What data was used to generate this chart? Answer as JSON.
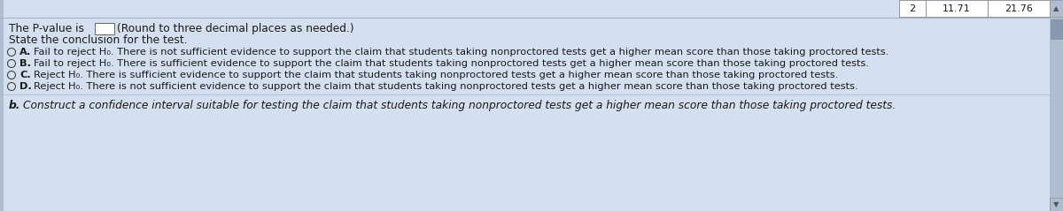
{
  "bg_color": "#d4dff0",
  "text_color": "#1a1a1a",
  "white": "#ffffff",
  "border_color": "#888888",
  "table_bg": "#c8d3e3",
  "scrollbar_bg": "#b0bccf",
  "scrollbar_thumb": "#8898b0",
  "line_color": "#a8b4c4",
  "font_size_main": 8.8,
  "font_size_opt": 8.2,
  "font_size_last": 8.8,
  "p_value_label": "The P-value is",
  "p_value_suffix": " (Round to three decimal places as needed.)",
  "conclusion_label": "State the conclusion for the test.",
  "optA": "Fail to reject H₀. There is not sufficient evidence to support the claim that students taking nonproctored tests get a higher mean score than those taking proctored tests.",
  "optB": "Fail to reject H₀. There is sufficient evidence to support the claim that students taking nonproctored tests get a higher mean score than those taking proctored tests.",
  "optC": "Reject H₀. There is sufficient evidence to support the claim that students taking nonproctored tests get a higher mean score than those taking proctored tests.",
  "optD": "Reject H₀. There is not sufficient evidence to support the claim that students taking nonproctored tests get a higher mean score than those taking proctored tests.",
  "last_line": "Construct a confidence interval suitable for testing the claim that students taking nonproctored tests get a higher mean score than those taking proctored tests.",
  "col1": "2",
  "col2": "11.71",
  "col3": "21.76"
}
